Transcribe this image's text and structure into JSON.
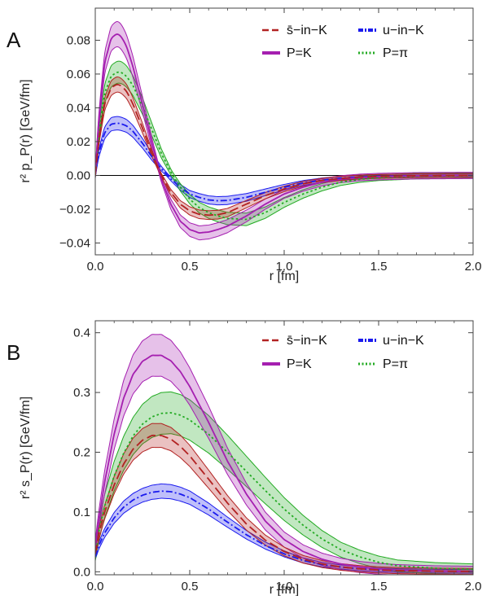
{
  "chart_data": [
    {
      "type": "line",
      "panel_label": "A",
      "xlabel": "r [fm]",
      "ylabel": "r² p_P(r) [GeV/fm]",
      "xlim": [
        0,
        2.0
      ],
      "ylim": [
        -0.047,
        0.099
      ],
      "x_ticks": [
        0,
        0.5,
        1.0,
        1.5,
        2.0
      ],
      "x_tick_labels": [
        "0.0",
        "0.5",
        "1.0",
        "1.5",
        "2.0"
      ],
      "y_ticks": [
        -0.04,
        -0.02,
        0,
        0.02,
        0.04,
        0.06,
        0.08
      ],
      "y_tick_labels": [
        "−0.04",
        "−0.02",
        "0.00",
        "0.02",
        "0.04",
        "0.06",
        "0.08"
      ],
      "zero_line": true,
      "legend_position": "top-right",
      "series": [
        {
          "name": "s̄−in−K",
          "color": "#b22222",
          "dash": "dashed",
          "band_half_width": 0.0045,
          "x": [
            0,
            0.02,
            0.05,
            0.08,
            0.11,
            0.14,
            0.17,
            0.2,
            0.25,
            0.3,
            0.35,
            0.4,
            0.45,
            0.5,
            0.55,
            0.6,
            0.65,
            0.7,
            0.8,
            0.9,
            1.0,
            1.1,
            1.2,
            1.3,
            1.4,
            1.5,
            1.7,
            2.0
          ],
          "y": [
            0,
            0.022,
            0.042,
            0.051,
            0.054,
            0.053,
            0.049,
            0.042,
            0.028,
            0.013,
            0.0,
            -0.01,
            -0.017,
            -0.021,
            -0.023,
            -0.0235,
            -0.0232,
            -0.022,
            -0.017,
            -0.012,
            -0.008,
            -0.005,
            -0.003,
            -0.0018,
            -0.001,
            -0.0006,
            -0.0002,
            0
          ]
        },
        {
          "name": "u−in−K",
          "color": "#1a1aee",
          "dash": "dashdot",
          "band_half_width": 0.004,
          "x": [
            0,
            0.02,
            0.05,
            0.08,
            0.11,
            0.14,
            0.17,
            0.2,
            0.25,
            0.3,
            0.35,
            0.4,
            0.45,
            0.5,
            0.55,
            0.6,
            0.65,
            0.7,
            0.8,
            0.9,
            1.0,
            1.1,
            1.2,
            1.3,
            1.4,
            1.5,
            1.7,
            2.0
          ],
          "y": [
            0,
            0.014,
            0.025,
            0.03,
            0.031,
            0.0305,
            0.029,
            0.026,
            0.019,
            0.011,
            0.004,
            -0.002,
            -0.007,
            -0.011,
            -0.013,
            -0.0145,
            -0.015,
            -0.0148,
            -0.013,
            -0.01,
            -0.007,
            -0.0045,
            -0.0028,
            -0.0016,
            -0.0009,
            -0.0005,
            -0.0002,
            0
          ]
        },
        {
          "name": "P=K",
          "color": "#a51fb0",
          "dash": "solid",
          "band_half_width": 0.0075,
          "x": [
            0,
            0.02,
            0.05,
            0.08,
            0.11,
            0.14,
            0.17,
            0.2,
            0.25,
            0.3,
            0.35,
            0.4,
            0.45,
            0.5,
            0.55,
            0.6,
            0.65,
            0.7,
            0.8,
            0.9,
            1.0,
            1.1,
            1.2,
            1.3,
            1.4,
            1.5,
            1.7,
            2.0
          ],
          "y": [
            0,
            0.035,
            0.066,
            0.08,
            0.084,
            0.082,
            0.075,
            0.064,
            0.042,
            0.019,
            -0.002,
            -0.017,
            -0.027,
            -0.032,
            -0.034,
            -0.0335,
            -0.032,
            -0.03,
            -0.024,
            -0.017,
            -0.011,
            -0.007,
            -0.004,
            -0.0022,
            -0.0012,
            -0.0007,
            -0.0002,
            0
          ]
        },
        {
          "name": "P=π",
          "color": "#22aa22",
          "dash": "dotted",
          "band_half_width": 0.0065,
          "x": [
            0,
            0.02,
            0.05,
            0.08,
            0.11,
            0.14,
            0.17,
            0.2,
            0.25,
            0.3,
            0.35,
            0.4,
            0.45,
            0.5,
            0.55,
            0.6,
            0.65,
            0.7,
            0.8,
            0.9,
            1.0,
            1.1,
            1.2,
            1.3,
            1.4,
            1.5,
            1.7,
            2.0
          ],
          "y": [
            0,
            0.025,
            0.048,
            0.058,
            0.061,
            0.061,
            0.058,
            0.053,
            0.041,
            0.027,
            0.013,
            0.002,
            -0.007,
            -0.014,
            -0.019,
            -0.022,
            -0.024,
            -0.0255,
            -0.026,
            -0.022,
            -0.016,
            -0.011,
            -0.007,
            -0.004,
            -0.0023,
            -0.0013,
            -0.0004,
            -0.0001
          ]
        }
      ],
      "legend": [
        {
          "series": 0,
          "label": "s̄−in−K"
        },
        {
          "series": 1,
          "label": "u−in−K"
        },
        {
          "series": 2,
          "label": "P=K"
        },
        {
          "series": 3,
          "label": "P=π"
        }
      ]
    },
    {
      "type": "line",
      "panel_label": "B",
      "xlabel": "r [fm]",
      "ylabel": "r² s_P(r) [GeV/fm]",
      "xlim": [
        0,
        2.0
      ],
      "ylim": [
        -0.005,
        0.42
      ],
      "x_ticks": [
        0,
        0.5,
        1.0,
        1.5,
        2.0
      ],
      "x_tick_labels": [
        "0.0",
        "0.5",
        "1.0",
        "1.5",
        "2.0"
      ],
      "y_ticks": [
        0,
        0.1,
        0.2,
        0.3,
        0.4
      ],
      "y_tick_labels": [
        "0.0",
        "0.1",
        "0.2",
        "0.3",
        "0.4"
      ],
      "zero_line": false,
      "legend_position": "top-right",
      "series": [
        {
          "name": "s̄−in−K",
          "color": "#b22222",
          "dash": "dashed",
          "band_half_width": 0.02,
          "x": [
            0,
            0.02,
            0.05,
            0.1,
            0.15,
            0.2,
            0.25,
            0.3,
            0.35,
            0.4,
            0.45,
            0.5,
            0.6,
            0.7,
            0.8,
            0.9,
            1.0,
            1.1,
            1.2,
            1.3,
            1.4,
            1.5,
            1.6,
            1.8,
            2.0
          ],
          "y": [
            0.03,
            0.065,
            0.1,
            0.145,
            0.18,
            0.205,
            0.22,
            0.228,
            0.228,
            0.222,
            0.21,
            0.194,
            0.155,
            0.115,
            0.08,
            0.053,
            0.034,
            0.021,
            0.013,
            0.008,
            0.005,
            0.003,
            0.002,
            0.001,
            0.0005
          ]
        },
        {
          "name": "u−in−K",
          "color": "#1a1aee",
          "dash": "dashdot",
          "band_half_width": 0.012,
          "x": [
            0,
            0.02,
            0.05,
            0.1,
            0.15,
            0.2,
            0.25,
            0.3,
            0.35,
            0.4,
            0.45,
            0.5,
            0.6,
            0.7,
            0.8,
            0.9,
            1.0,
            1.1,
            1.2,
            1.3,
            1.4,
            1.5,
            1.6,
            1.8,
            2.0
          ],
          "y": [
            0.025,
            0.045,
            0.065,
            0.09,
            0.108,
            0.12,
            0.128,
            0.133,
            0.135,
            0.134,
            0.13,
            0.124,
            0.105,
            0.083,
            0.062,
            0.044,
            0.03,
            0.019,
            0.012,
            0.008,
            0.005,
            0.003,
            0.002,
            0.001,
            0.0005
          ]
        },
        {
          "name": "P=K",
          "color": "#a51fb0",
          "dash": "solid",
          "band_half_width": 0.035,
          "x": [
            0,
            0.02,
            0.05,
            0.1,
            0.15,
            0.2,
            0.25,
            0.3,
            0.35,
            0.4,
            0.45,
            0.5,
            0.6,
            0.7,
            0.8,
            0.9,
            1.0,
            1.1,
            1.2,
            1.3,
            1.4,
            1.5,
            1.6,
            1.8,
            2.0
          ],
          "y": [
            0.04,
            0.09,
            0.15,
            0.23,
            0.29,
            0.33,
            0.352,
            0.362,
            0.362,
            0.353,
            0.335,
            0.31,
            0.25,
            0.185,
            0.13,
            0.085,
            0.054,
            0.034,
            0.021,
            0.013,
            0.008,
            0.005,
            0.003,
            0.0012,
            0.0005
          ]
        },
        {
          "name": "P=π",
          "color": "#22aa22",
          "dash": "dotted",
          "band_half_width": 0.035,
          "x": [
            0,
            0.02,
            0.05,
            0.1,
            0.15,
            0.2,
            0.25,
            0.3,
            0.35,
            0.4,
            0.45,
            0.5,
            0.6,
            0.7,
            0.8,
            0.9,
            1.0,
            1.1,
            1.2,
            1.3,
            1.4,
            1.5,
            1.6,
            1.8,
            2.0
          ],
          "y": [
            0.03,
            0.07,
            0.11,
            0.16,
            0.198,
            0.227,
            0.247,
            0.259,
            0.265,
            0.266,
            0.262,
            0.254,
            0.23,
            0.2,
            0.168,
            0.136,
            0.105,
            0.078,
            0.055,
            0.037,
            0.025,
            0.016,
            0.01,
            0.006,
            0.004
          ]
        }
      ],
      "legend": [
        {
          "series": 0,
          "label": "s̄−in−K"
        },
        {
          "series": 1,
          "label": "u−in−K"
        },
        {
          "series": 2,
          "label": "P=K"
        },
        {
          "series": 3,
          "label": "P=π"
        }
      ]
    }
  ]
}
